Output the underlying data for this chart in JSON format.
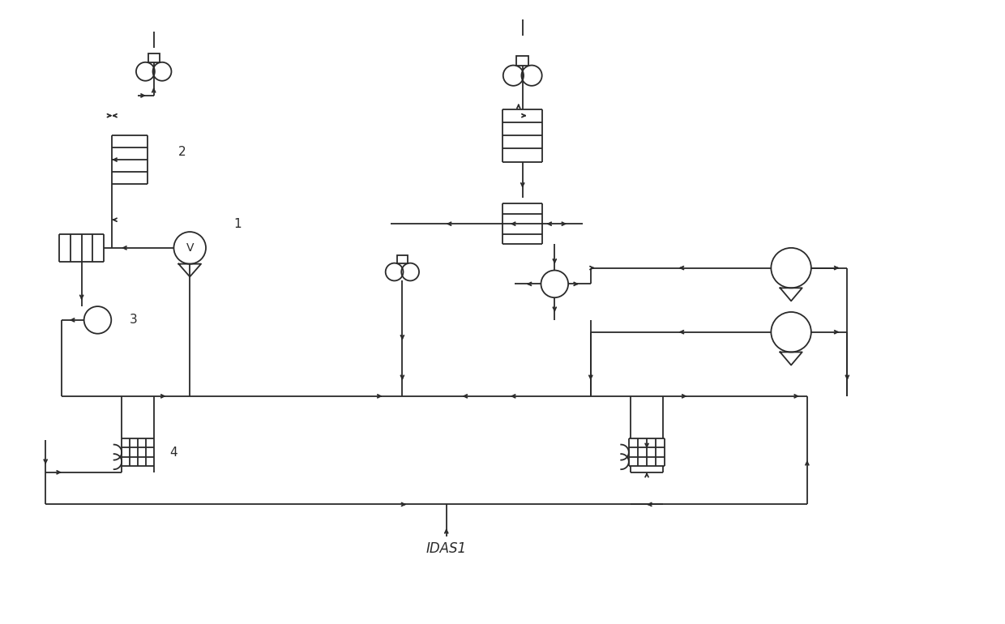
{
  "bg_color": "#ffffff",
  "line_color": "#2a2a2a",
  "title": "IDAS1",
  "lw": 1.3,
  "fig_width": 12.4,
  "fig_height": 7.7
}
